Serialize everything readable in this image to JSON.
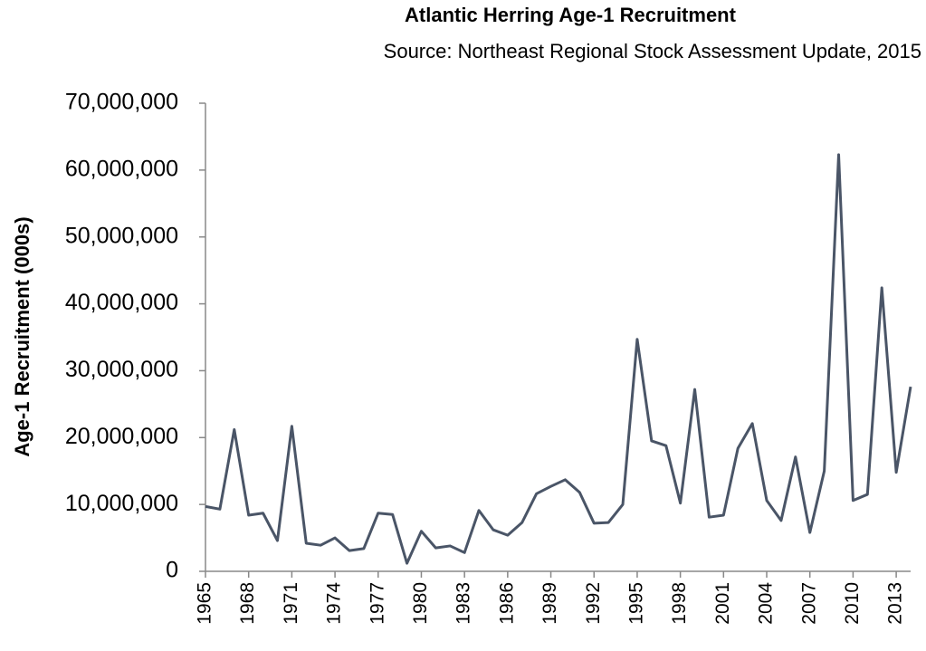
{
  "chart_data": {
    "type": "line",
    "title": "Atlantic Herring Age-1 Recruitment",
    "subtitle": "Source: Northeast Regional Stock Assessment Update, 2015",
    "y_label": "Age-1 Recruitment (000s)",
    "x": [
      1965,
      1966,
      1967,
      1968,
      1969,
      1970,
      1971,
      1972,
      1973,
      1974,
      1975,
      1976,
      1977,
      1978,
      1979,
      1980,
      1981,
      1982,
      1983,
      1984,
      1985,
      1986,
      1987,
      1988,
      1989,
      1990,
      1991,
      1992,
      1993,
      1994,
      1995,
      1996,
      1997,
      1998,
      1999,
      2000,
      2001,
      2002,
      2003,
      2004,
      2005,
      2006,
      2007,
      2008,
      2009,
      2010,
      2011,
      2012,
      2013,
      2014
    ],
    "series": [
      {
        "name": "Age-1 Recruitment",
        "color": "#4a5567",
        "values": [
          9700000,
          9300000,
          21200000,
          8400000,
          8700000,
          4600000,
          21700000,
          4200000,
          3900000,
          5000000,
          3100000,
          3400000,
          8700000,
          8500000,
          1200000,
          6000000,
          3500000,
          3800000,
          2800000,
          9100000,
          6200000,
          5400000,
          7300000,
          11600000,
          12700000,
          13700000,
          11800000,
          7200000,
          7300000,
          10000000,
          34700000,
          19500000,
          18800000,
          10200000,
          27200000,
          8100000,
          8400000,
          18400000,
          22100000,
          10600000,
          7600000,
          17100000,
          5800000,
          15000000,
          62300000,
          10600000,
          11500000,
          42400000,
          14800000,
          27600000
        ]
      }
    ],
    "xlim": [
      1965,
      2014
    ],
    "xticks": [
      1965,
      1968,
      1971,
      1974,
      1977,
      1980,
      1983,
      1986,
      1989,
      1992,
      1995,
      1998,
      2001,
      2004,
      2007,
      2010,
      2013
    ],
    "ylim": [
      0,
      70000000
    ],
    "yticks": [
      0,
      {
        "value": 10000000,
        "label": "10,000,000"
      },
      {
        "value": 20000000,
        "label": "20,000,000"
      },
      {
        "value": 30000000,
        "label": "30,000,000"
      },
      {
        "value": 40000000,
        "label": "40,000,000"
      },
      {
        "value": 50000000,
        "label": "50,000,000"
      },
      {
        "value": 60000000,
        "label": "60,000,000"
      },
      {
        "value": 70000000,
        "label": "70,000,000"
      }
    ],
    "grid": false
  }
}
